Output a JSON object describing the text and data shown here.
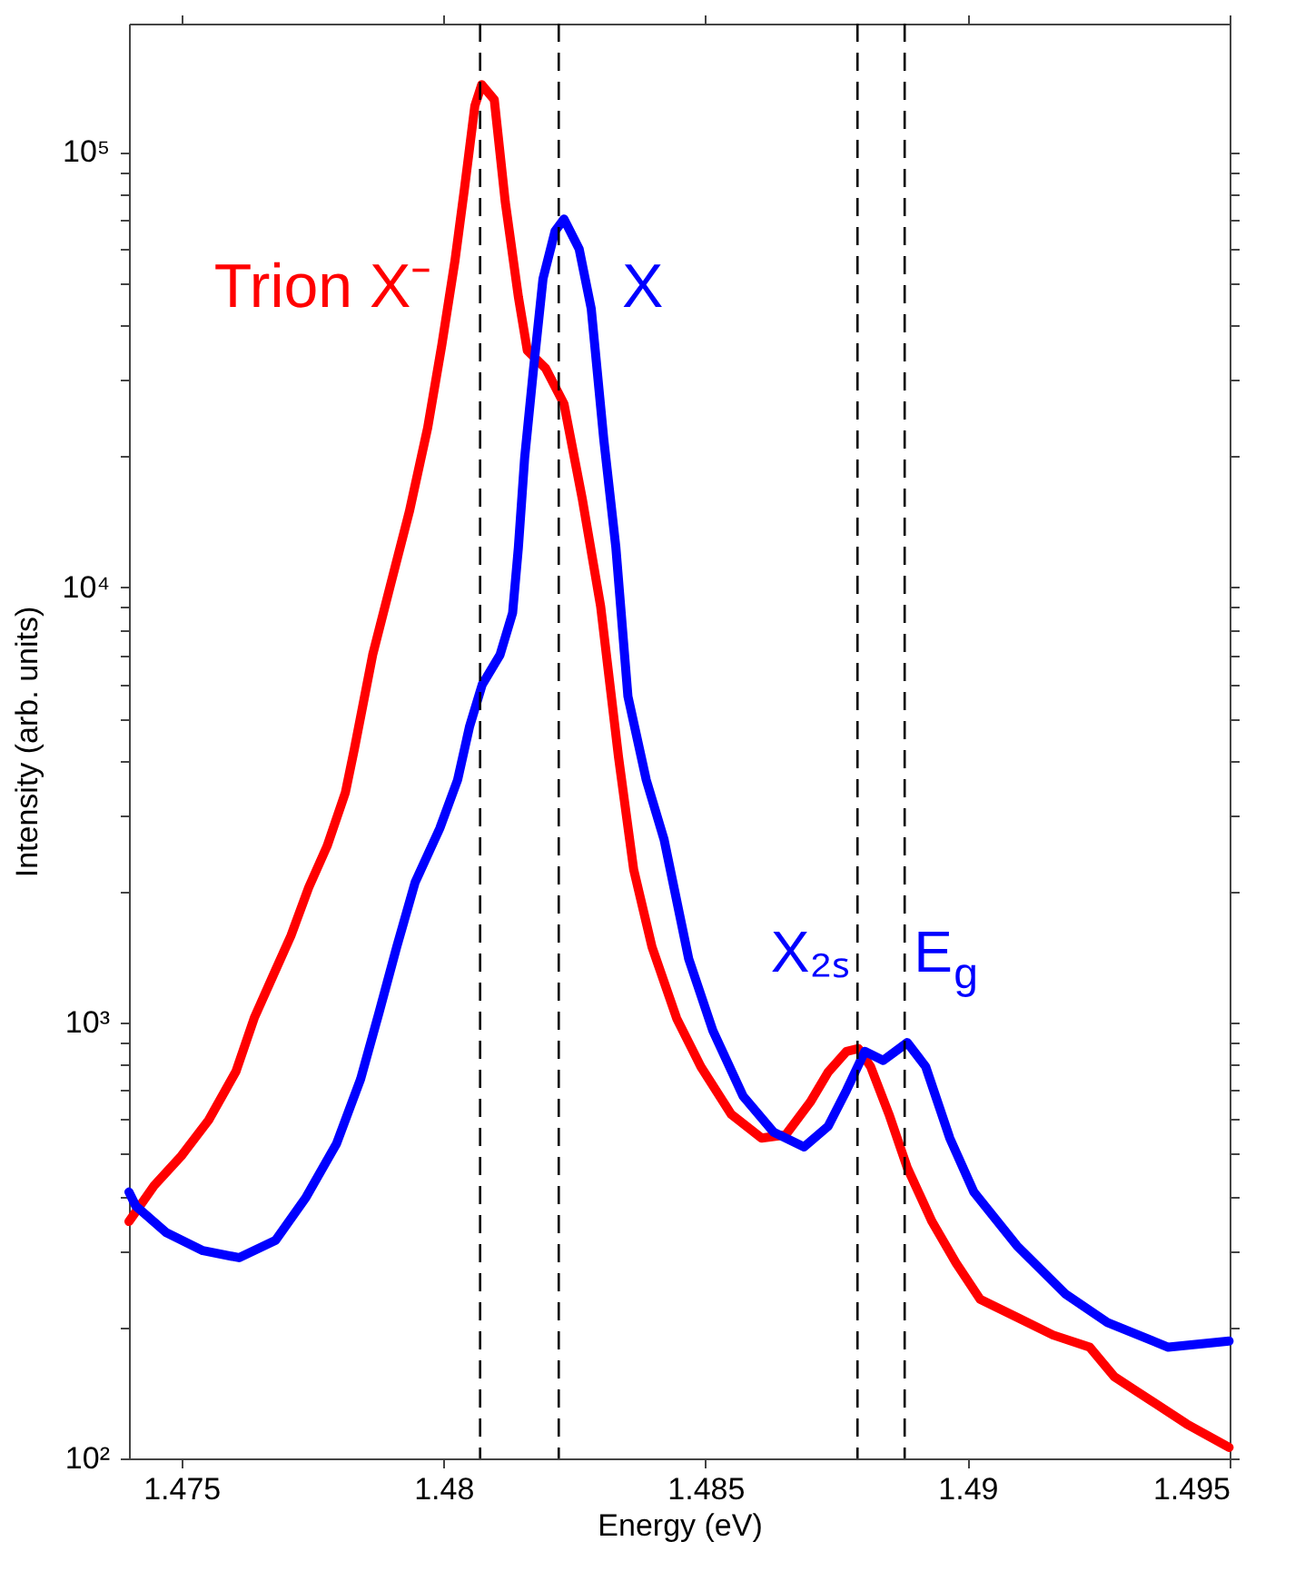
{
  "chart_data": {
    "type": "line",
    "xlabel": "Energy (eV)",
    "ylabel": "Intensity (arb. units)",
    "xlim": [
      1.474,
      1.495
    ],
    "xticks": [
      1.475,
      1.48,
      1.485,
      1.49,
      1.495
    ],
    "ylim": [
      100,
      197000
    ],
    "log": "y",
    "yticks": [
      {
        "value": 100,
        "label": "10²"
      },
      {
        "value": 200,
        "label": null
      },
      {
        "value": 300,
        "label": null
      },
      {
        "value": 400,
        "label": null
      },
      {
        "value": 500,
        "label": null
      },
      {
        "value": 600,
        "label": null
      },
      {
        "value": 700,
        "label": null
      },
      {
        "value": 800,
        "label": null
      },
      {
        "value": 900,
        "label": null
      },
      {
        "value": 1000,
        "label": "10³"
      },
      {
        "value": 2000,
        "label": null
      },
      {
        "value": 3000,
        "label": null
      },
      {
        "value": 4000,
        "label": null
      },
      {
        "value": 5000,
        "label": null
      },
      {
        "value": 6000,
        "label": null
      },
      {
        "value": 7000,
        "label": null
      },
      {
        "value": 8000,
        "label": null
      },
      {
        "value": 9000,
        "label": null
      },
      {
        "value": 10000,
        "label": "10⁴"
      },
      {
        "value": 20000,
        "label": null
      },
      {
        "value": 30000,
        "label": null
      },
      {
        "value": 40000,
        "label": null
      },
      {
        "value": 50000,
        "label": null
      },
      {
        "value": 60000,
        "label": null
      },
      {
        "value": 70000,
        "label": null
      },
      {
        "value": 80000,
        "label": null
      },
      {
        "value": 90000,
        "label": null
      },
      {
        "value": 100000,
        "label": "10⁵"
      }
    ],
    "grid": false,
    "legend": false,
    "marker": "none",
    "line_style": "solid",
    "series": [
      {
        "name": "Trion X⁻",
        "color": "#ff0000",
        "x": [
          1.474,
          1.47448,
          1.475,
          1.47552,
          1.47604,
          1.47639,
          1.47674,
          1.47709,
          1.47743,
          1.47778,
          1.47813,
          1.4783,
          1.47865,
          1.479,
          1.47935,
          1.4797,
          1.47997,
          1.48022,
          1.4804,
          1.4806,
          1.48073,
          1.48097,
          1.48118,
          1.48143,
          1.4816,
          1.48195,
          1.4823,
          1.48265,
          1.483,
          1.48334,
          1.48363,
          1.48398,
          1.48445,
          1.48491,
          1.48549,
          1.48607,
          1.48653,
          1.487,
          1.48734,
          1.48769,
          1.48792,
          1.48815,
          1.4885,
          1.48885,
          1.48932,
          1.48978,
          1.49024,
          1.49094,
          1.49163,
          1.49233,
          1.4928,
          1.49349,
          1.49418,
          1.49499
        ],
        "values": [
          350,
          423,
          495,
          598,
          773,
          1026,
          1276,
          1585,
          2046,
          2545,
          3383,
          4249,
          7000,
          10240,
          14930,
          23280,
          36060,
          56230,
          82040,
          127600,
          142600,
          131800,
          76700,
          46450,
          35000,
          31840,
          26380,
          15950,
          9040,
          4084,
          2249,
          1493,
          1024,
          794,
          617,
          544,
          553,
          658,
          771,
          860,
          873,
          794,
          617,
          465,
          350,
          281,
          232,
          211,
          192,
          180,
          154,
          136,
          120,
          106
        ]
      },
      {
        "name": "X",
        "color": "#0000ff",
        "x": [
          1.474,
          1.47413,
          1.47471,
          1.47541,
          1.4761,
          1.4768,
          1.47738,
          1.47796,
          1.47842,
          1.47877,
          1.47911,
          1.47946,
          1.47993,
          1.48027,
          1.4805,
          1.48074,
          1.48108,
          1.48132,
          1.48143,
          1.48155,
          1.48172,
          1.4819,
          1.48213,
          1.4823,
          1.48259,
          1.48282,
          1.48306,
          1.48329,
          1.48352,
          1.48387,
          1.48421,
          1.48468,
          1.48514,
          1.48572,
          1.4863,
          1.48688,
          1.48734,
          1.48769,
          1.48804,
          1.48839,
          1.48885,
          1.4892,
          1.48966,
          1.49012,
          1.49094,
          1.49186,
          1.49267,
          1.49383,
          1.49499
        ],
        "values": [
          409,
          380,
          330,
          300,
          289,
          317,
          398,
          528,
          743,
          1054,
          1496,
          2102,
          2796,
          3613,
          4800,
          5980,
          7000,
          8740,
          12350,
          19850,
          31860,
          51150,
          65790,
          70100,
          59840,
          43650,
          21830,
          12350,
          5623,
          3613,
          2636,
          1403,
          960,
          678,
          561,
          519,
          579,
          700,
          860,
          820,
          901,
          794,
          544,
          409,
          308,
          239,
          205,
          180,
          186
        ]
      }
    ],
    "ref_lines": [
      {
        "axis": "x",
        "value": 1.4807,
        "color": "#000000",
        "line_style": "dashed"
      },
      {
        "axis": "x",
        "value": 1.4822,
        "color": "#000000",
        "line_style": "dashed"
      },
      {
        "axis": "x",
        "value": 1.4879,
        "color": "#000000",
        "line_style": "dashed",
        "label": "X₂ₛ"
      },
      {
        "axis": "x",
        "value": 1.4888,
        "color": "#000000",
        "line_style": "dashed",
        "label": "E$_{g}$"
      }
    ]
  }
}
